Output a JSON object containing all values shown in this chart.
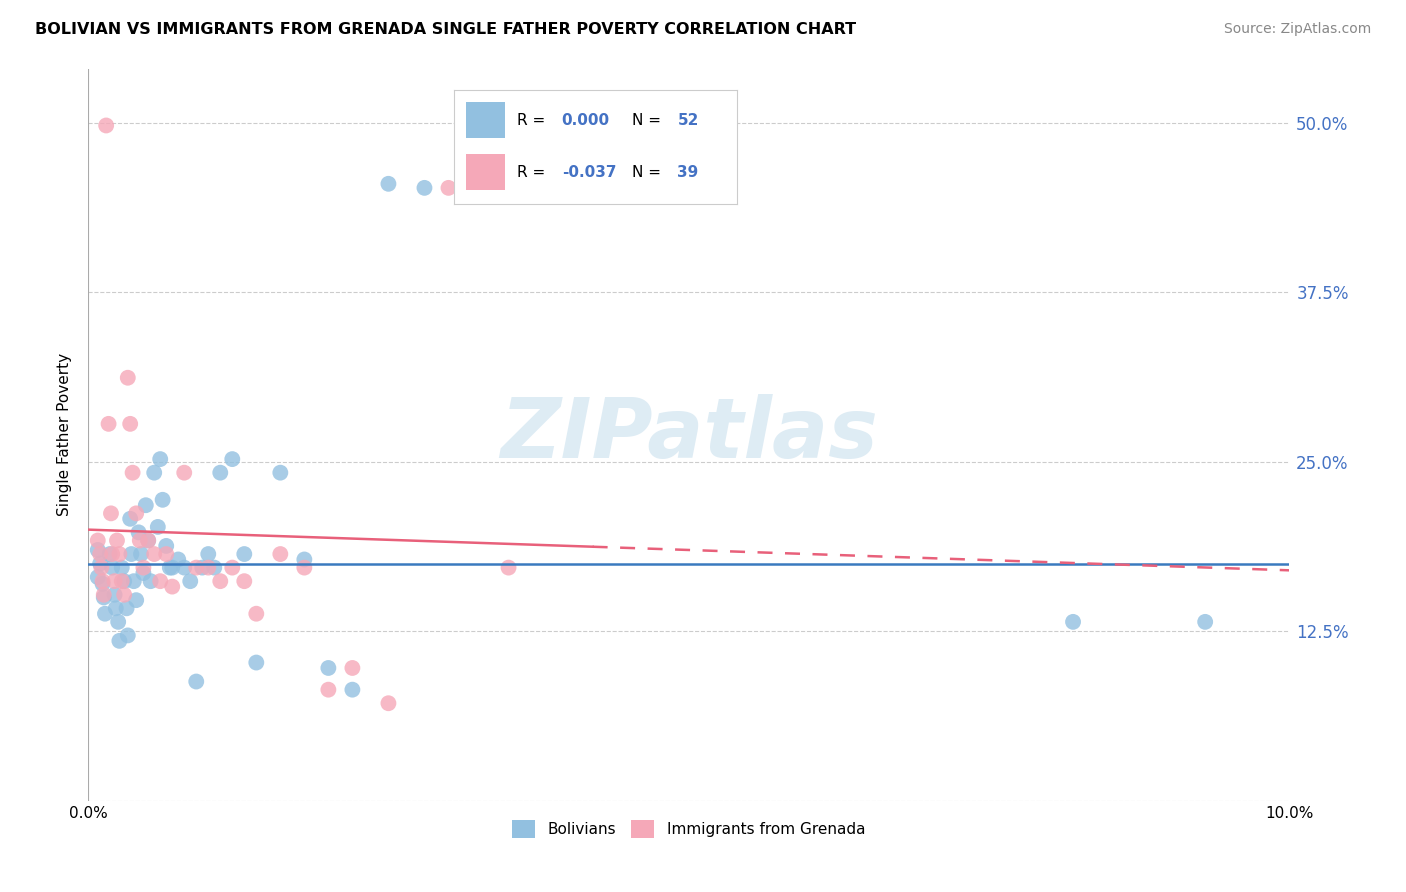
{
  "title": "BOLIVIAN VS IMMIGRANTS FROM GRENADA SINGLE FATHER POVERTY CORRELATION CHART",
  "source": "Source: ZipAtlas.com",
  "ylabel": "Single Father Poverty",
  "yticks": [
    0.0,
    0.125,
    0.25,
    0.375,
    0.5
  ],
  "ytick_labels": [
    "",
    "12.5%",
    "25.0%",
    "37.5%",
    "50.0%"
  ],
  "xlim": [
    0.0,
    0.1
  ],
  "ylim": [
    0.0,
    0.54
  ],
  "legend_R_blue": "0.000",
  "legend_N_blue": "52",
  "legend_R_pink": "-0.037",
  "legend_N_pink": "39",
  "legend_label_blue": "Bolivians",
  "legend_label_pink": "Immigrants from Grenada",
  "blue_color": "#92c0e0",
  "pink_color": "#f5a8b8",
  "trendline_blue_color": "#3a7abf",
  "trendline_pink_color": "#e8607a",
  "watermark_text": "ZIPatlas",
  "watermark_color": "#d0e4f0",
  "blue_x": [
    0.0008,
    0.0008,
    0.001,
    0.0012,
    0.0013,
    0.0014,
    0.0018,
    0.002,
    0.0022,
    0.0023,
    0.0025,
    0.0026,
    0.0028,
    0.003,
    0.0032,
    0.0033,
    0.0035,
    0.0036,
    0.0038,
    0.004,
    0.0042,
    0.0044,
    0.0046,
    0.0048,
    0.005,
    0.0052,
    0.0055,
    0.0058,
    0.006,
    0.0062,
    0.0065,
    0.0068,
    0.007,
    0.0075,
    0.008,
    0.0085,
    0.009,
    0.0095,
    0.01,
    0.0105,
    0.011,
    0.012,
    0.013,
    0.014,
    0.016,
    0.018,
    0.02,
    0.022,
    0.025,
    0.028,
    0.082,
    0.093
  ],
  "blue_y": [
    0.185,
    0.165,
    0.175,
    0.16,
    0.15,
    0.138,
    0.182,
    0.172,
    0.152,
    0.142,
    0.132,
    0.118,
    0.172,
    0.162,
    0.142,
    0.122,
    0.208,
    0.182,
    0.162,
    0.148,
    0.198,
    0.182,
    0.168,
    0.218,
    0.192,
    0.162,
    0.242,
    0.202,
    0.252,
    0.222,
    0.188,
    0.172,
    0.172,
    0.178,
    0.172,
    0.162,
    0.088,
    0.172,
    0.182,
    0.172,
    0.242,
    0.252,
    0.182,
    0.102,
    0.242,
    0.178,
    0.098,
    0.082,
    0.455,
    0.452,
    0.132,
    0.132
  ],
  "pink_x": [
    0.0008,
    0.001,
    0.0011,
    0.0012,
    0.0013,
    0.0015,
    0.0017,
    0.0019,
    0.002,
    0.0022,
    0.0024,
    0.0026,
    0.0028,
    0.003,
    0.0033,
    0.0035,
    0.0037,
    0.004,
    0.0043,
    0.0046,
    0.005,
    0.0055,
    0.006,
    0.0065,
    0.007,
    0.008,
    0.009,
    0.01,
    0.011,
    0.012,
    0.013,
    0.014,
    0.016,
    0.018,
    0.02,
    0.022,
    0.025,
    0.03,
    0.035
  ],
  "pink_y": [
    0.192,
    0.182,
    0.172,
    0.162,
    0.152,
    0.498,
    0.278,
    0.212,
    0.182,
    0.162,
    0.192,
    0.182,
    0.162,
    0.152,
    0.312,
    0.278,
    0.242,
    0.212,
    0.192,
    0.172,
    0.192,
    0.182,
    0.162,
    0.182,
    0.158,
    0.242,
    0.172,
    0.172,
    0.162,
    0.172,
    0.162,
    0.138,
    0.182,
    0.172,
    0.082,
    0.098,
    0.072,
    0.452,
    0.172
  ],
  "trend_blue_x0": 0.0,
  "trend_blue_x1": 0.1,
  "trend_blue_y0": 0.175,
  "trend_blue_y1": 0.175,
  "trend_pink_x0": 0.0,
  "trend_pink_x1": 0.1,
  "trend_pink_y0": 0.2,
  "trend_pink_y1": 0.17,
  "trend_pink_solid_end": 0.042
}
